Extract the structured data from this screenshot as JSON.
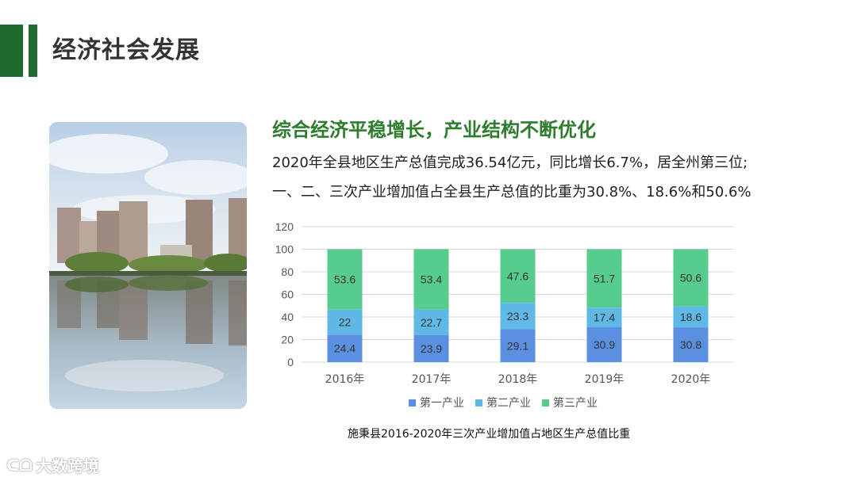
{
  "page": {
    "title": "经济社会发展",
    "headline": "综合经济平稳增长，产业结构不断优化",
    "line1": "2020年全县地区生产总值完成36.54亿元，同比增长6.7%，居全州第三位;",
    "line2": "一、二、三次产业增加值占全县生产总值的比重为30.8%、18.6%和50.6%",
    "caption": "施秉县2016-2020年三次产业增加值占地区生产总值比重",
    "watermark": "大数跨境",
    "accent_color": "#1f6b2e",
    "headline_color": "#2e7d2e"
  },
  "chart_data": {
    "type": "bar",
    "stacked": true,
    "categories": [
      "2016年",
      "2017年",
      "2018年",
      "2019年",
      "2020年"
    ],
    "series": [
      {
        "name": "第一产业",
        "values": [
          24.4,
          23.9,
          29.1,
          30.9,
          30.8
        ],
        "color": "#5b8fe0"
      },
      {
        "name": "第二产业",
        "values": [
          22,
          22.7,
          23.3,
          17.4,
          18.6
        ],
        "color": "#5fb8e6"
      },
      {
        "name": "第三产业",
        "values": [
          53.6,
          53.4,
          47.6,
          51.7,
          50.6
        ],
        "color": "#56cc8e"
      }
    ],
    "ylim": [
      0,
      120
    ],
    "yticks": [
      0,
      20,
      40,
      60,
      80,
      100,
      120
    ],
    "grid": true,
    "legend": "bottom"
  }
}
